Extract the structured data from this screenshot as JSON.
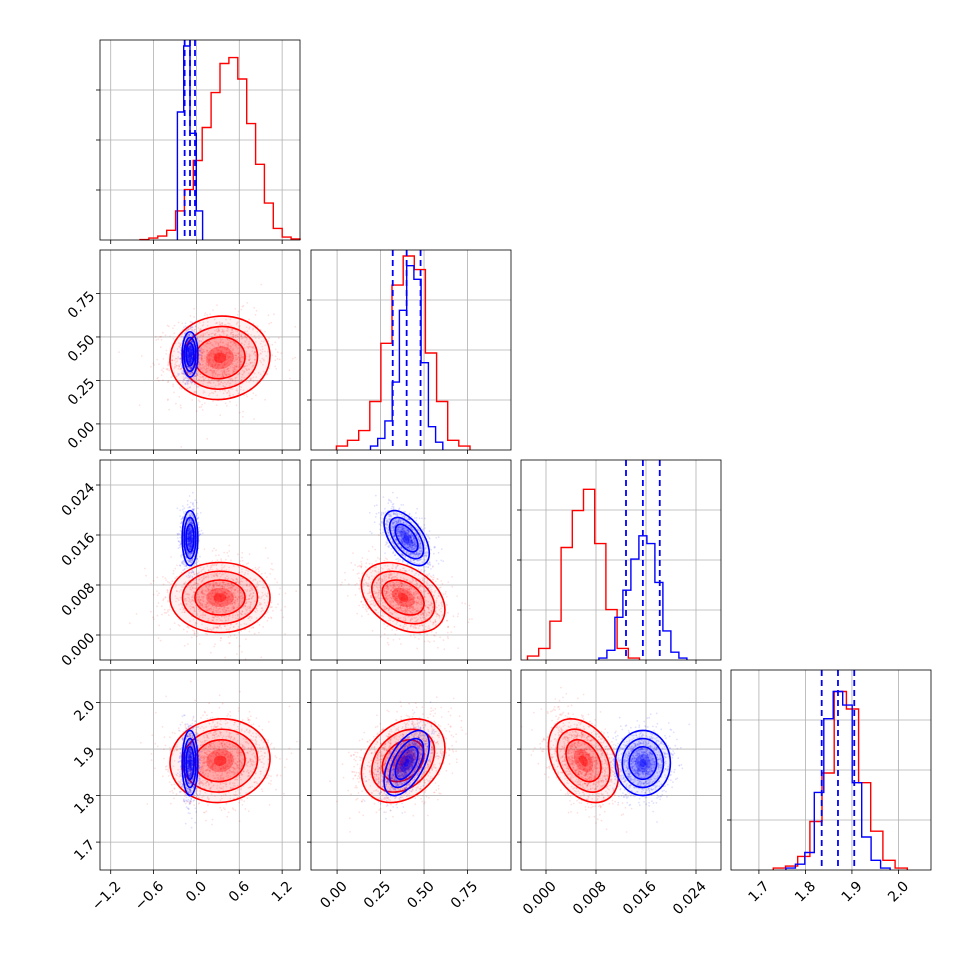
{
  "chart_data": {
    "type": "corner",
    "grid": true,
    "colors": {
      "red": "#ff0000",
      "blue": "#0000ff",
      "grid": "#b0b0b0",
      "axes": "#000000"
    },
    "params": [
      {
        "range": [
          -1.35,
          1.45
        ],
        "ticks": [
          -1.2,
          -0.6,
          0.0,
          0.6,
          1.2
        ],
        "tick_labels": [
          "−1.2",
          "−0.6",
          "0.0",
          "0.6",
          "1.2"
        ]
      },
      {
        "range": [
          -0.15,
          1.0
        ],
        "ticks": [
          0.0,
          0.25,
          0.5,
          0.75
        ],
        "tick_labels": [
          "0.00",
          "0.25",
          "0.50",
          "0.75"
        ]
      },
      {
        "range": [
          -0.004,
          0.028
        ],
        "ticks": [
          0.0,
          0.008,
          0.016,
          0.024
        ],
        "tick_labels": [
          "0.000",
          "0.008",
          "0.016",
          "0.024"
        ]
      },
      {
        "range": [
          1.64,
          2.07
        ],
        "ticks": [
          1.7,
          1.8,
          1.9,
          2.0
        ],
        "tick_labels": [
          "1.7",
          "1.8",
          "1.9",
          "2.0"
        ]
      }
    ],
    "series": [
      {
        "color": "#ff0000",
        "means": [
          0.33,
          0.38,
          0.006,
          1.875
        ],
        "sds": [
          0.35,
          0.12,
          0.0028,
          0.045
        ],
        "corr": [
          [
            0,
            1,
            0.05
          ],
          [
            0,
            3,
            0.05
          ],
          [
            1,
            2,
            -0.35
          ],
          [
            1,
            3,
            0.3
          ],
          [
            2,
            3,
            -0.35
          ]
        ],
        "hist": [
          [
            0.002,
            0.01,
            0.02,
            0.05,
            0.15,
            0.26,
            0.41,
            0.58,
            0.76,
            0.91,
            0.94,
            0.83,
            0.6,
            0.39,
            0.19,
            0.06,
            0.015,
            0.005
          ],
          [
            0.02,
            0.05,
            0.1,
            0.25,
            0.55,
            0.85,
            1.0,
            0.93,
            0.5,
            0.25,
            0.05,
            0.02
          ],
          [
            0.02,
            0.06,
            0.2,
            0.58,
            0.77,
            0.88,
            0.6,
            0.26,
            0.06,
            0.01
          ],
          [
            0.01,
            0.02,
            0.07,
            0.25,
            0.5,
            0.92,
            0.83,
            0.45,
            0.2,
            0.05,
            0.01
          ]
        ]
      },
      {
        "color": "#0000ff",
        "means": [
          -0.09,
          0.4,
          0.0155,
          1.87
        ],
        "sds": [
          0.055,
          0.065,
          0.0022,
          0.035
        ],
        "corr": [
          [
            1,
            2,
            -0.55
          ],
          [
            1,
            3,
            0.55
          ],
          [
            0,
            3,
            0.0
          ],
          [
            0,
            1,
            0.0
          ],
          [
            0,
            2,
            0.0
          ],
          [
            2,
            3,
            0.0
          ]
        ],
        "hist": [
          [
            0.66,
            1.0,
            0.55,
            0.15
          ],
          [
            0.02,
            0.06,
            0.15,
            0.35,
            0.72,
            0.95,
            0.88,
            0.45,
            0.12,
            0.04
          ],
          [
            0.01,
            0.05,
            0.22,
            0.36,
            0.52,
            0.64,
            0.6,
            0.4,
            0.15,
            0.04,
            0.01
          ],
          [
            0.01,
            0.03,
            0.09,
            0.4,
            0.78,
            0.92,
            0.85,
            0.45,
            0.17,
            0.05,
            0.01
          ]
        ],
        "quantiles": [
          [
            -0.165,
            -0.09,
            -0.02
          ],
          [
            0.32,
            0.4,
            0.48
          ],
          [
            0.0128,
            0.0155,
            0.0182
          ],
          [
            1.835,
            1.87,
            1.905
          ]
        ]
      }
    ]
  }
}
